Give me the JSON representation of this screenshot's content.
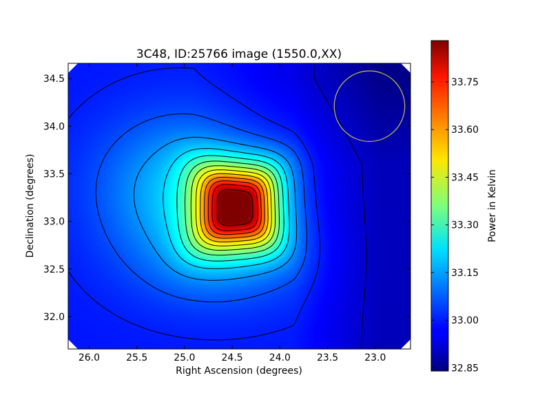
{
  "chart_data": {
    "type": "heatmap",
    "title": "3C48, ID:25766 image (1550.0,XX)",
    "xlabel": "Right Ascension (degrees)",
    "ylabel": "Declination (degrees)",
    "x_reversed": true,
    "xlim": [
      26.22,
      22.63
    ],
    "ylim": [
      31.66,
      34.66
    ],
    "xticks": [
      "26.0",
      "25.5",
      "25.0",
      "24.5",
      "24.0",
      "23.5",
      "23.0"
    ],
    "xtick_values": [
      26.0,
      25.5,
      25.0,
      24.5,
      24.0,
      23.5,
      23.0
    ],
    "yticks": [
      "32.0",
      "32.5",
      "33.0",
      "33.5",
      "34.0",
      "34.5"
    ],
    "ytick_values": [
      32.0,
      32.5,
      33.0,
      33.5,
      34.0,
      34.5
    ],
    "colorbar": {
      "label": "Power in Kelvin",
      "range": [
        32.84,
        33.88
      ],
      "ticks": [
        "32.85",
        "33.00",
        "33.15",
        "33.30",
        "33.45",
        "33.60",
        "33.75"
      ],
      "tick_values": [
        32.85,
        33.0,
        33.15,
        33.3,
        33.45,
        33.6,
        33.75
      ],
      "colormap": "jet"
    },
    "peak": {
      "ra": 24.45,
      "dec": 33.15,
      "value": 33.87
    },
    "contour_levels": [
      32.92,
      33.0,
      33.05,
      33.12,
      33.19,
      33.26,
      33.33,
      33.4,
      33.47,
      33.54,
      33.61,
      33.68,
      33.75,
      33.84
    ],
    "beam_circle": {
      "ra": 23.06,
      "dec": 34.21,
      "radius_deg": 0.37,
      "color": "#c8c040"
    },
    "grid": false
  }
}
